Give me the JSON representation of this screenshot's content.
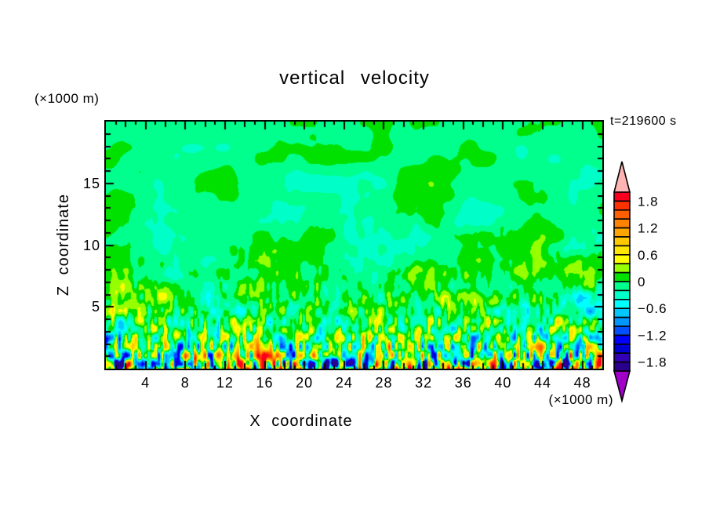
{
  "figure": {
    "title": "vertical velocity",
    "time_label": "t=219600 s",
    "y_unit_label": "(×1000 m)",
    "x_unit_label": "(×1000 m)",
    "x_axis_label": "X coordinate",
    "y_axis_label": "Z coordinate"
  },
  "chart_data": {
    "type": "heatmap",
    "subtype": "filled-contour",
    "title": "vertical velocity",
    "annotation": "t=219600 s",
    "xlabel": "X coordinate",
    "ylabel": "Z coordinate",
    "x_units_note": "(×1000 m)",
    "y_units_note": "(×1000 m)",
    "x_range": [
      0,
      50
    ],
    "z_range": [
      0,
      20
    ],
    "x_tick_labels": [
      4,
      8,
      12,
      16,
      20,
      24,
      28,
      32,
      36,
      40,
      44,
      48
    ],
    "x_minor_tick_step": 1,
    "x_major_tick_step": 4,
    "y_tick_labels": [
      5,
      10,
      15
    ],
    "y_minor_tick_step": 1,
    "y_major_tick_step": 5,
    "grid": false,
    "legend_position": "right-colorbar",
    "contour_interval": 0.2,
    "colorbar": {
      "value_min": -2.0,
      "value_max": 2.0,
      "labels": [
        "1.8",
        "1.2",
        "0.6",
        "0",
        "−0.6",
        "−1.2",
        "−1.8"
      ],
      "label_values": [
        1.8,
        1.2,
        0.6,
        0,
        -0.6,
        -1.2,
        -1.8
      ],
      "over_color": "#ffb4b4",
      "under_color": "#a000c8",
      "palette_top_to_bottom": [
        "#fa001e",
        "#ff3200",
        "#ff5f00",
        "#ff8200",
        "#ffa500",
        "#ffc800",
        "#ffe600",
        "#ffff00",
        "#96ff00",
        "#00e100",
        "#00ff8c",
        "#00ffc8",
        "#00ffff",
        "#00c8ff",
        "#0096ff",
        "#0050ff",
        "#0000ff",
        "#0000d2",
        "#3200b4",
        "#28008c"
      ]
    },
    "field": {
      "description": "Convective boundary-layer vertical velocity: uniform weakly-negative background (-0.2..0, spring green) with horizontally elongated 0..0.2 green blobs aloft; amplitude grows toward the surface where narrow vertical plumes reach ±2 (red/orange updrafts, blue/cyan downdrafts).",
      "background_value": -0.055,
      "surface_peak_amplitude": 2.0,
      "seed": 20190417,
      "octaves": [
        {
          "sx": 68,
          "sz": 38,
          "amp": 0.26,
          "decay": 0,
          "floor": 0.26
        },
        {
          "sx": 22,
          "sz": 16,
          "amp": 0.5,
          "decay": 6,
          "floor": 0.1
        },
        {
          "sx": 9,
          "sz": 15,
          "amp": 0.95,
          "decay": 5,
          "floor": 0
        },
        {
          "sx": 4.2,
          "sz": 11,
          "amp": 2.6,
          "decay": 9,
          "floor": 0
        }
      ]
    }
  }
}
